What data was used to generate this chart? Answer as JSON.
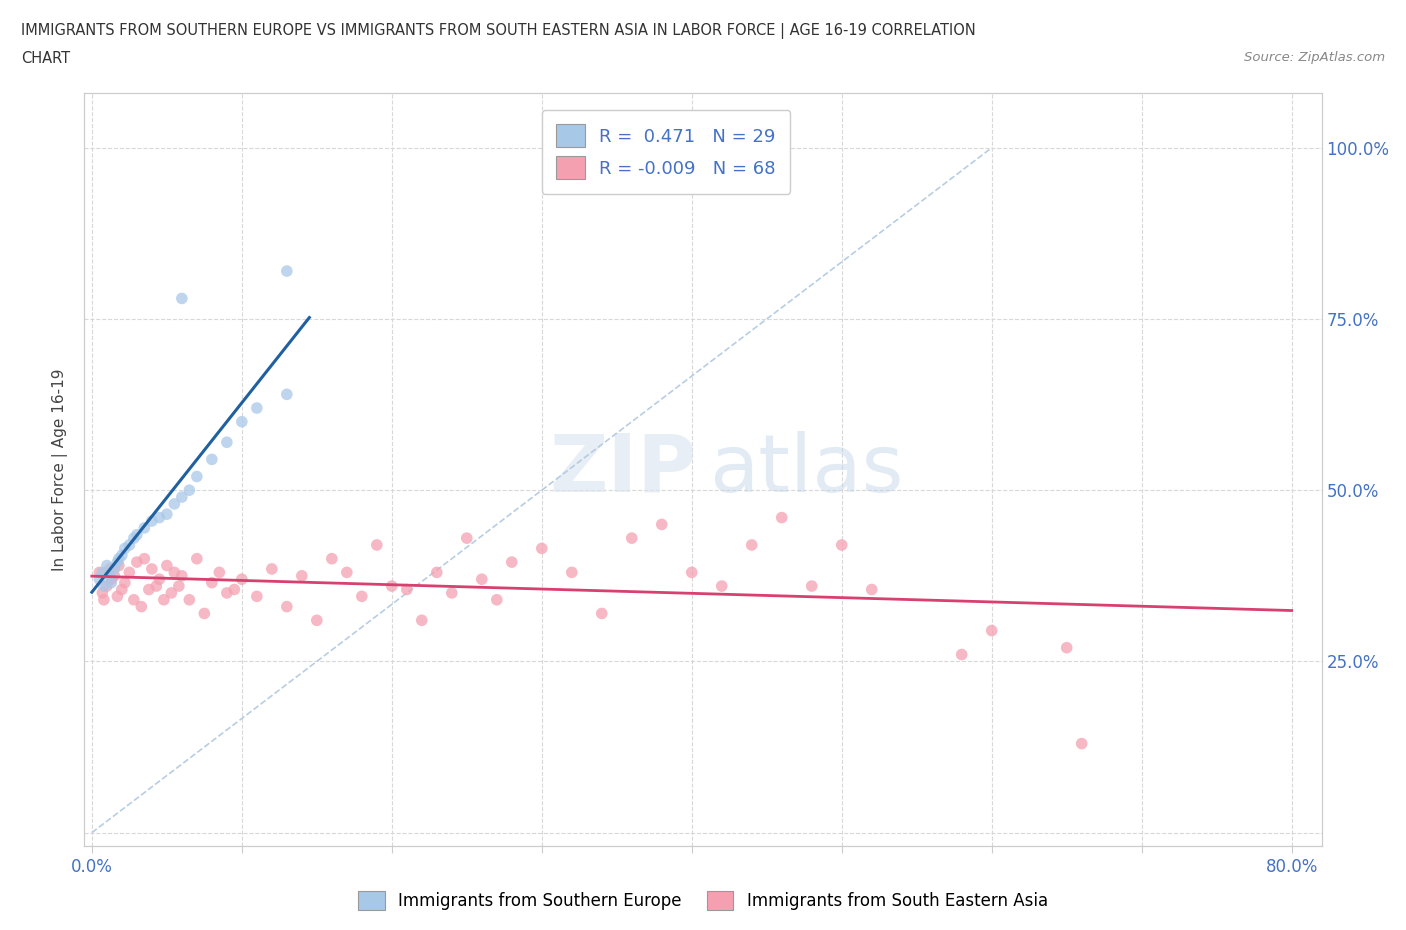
{
  "title_line1": "IMMIGRANTS FROM SOUTHERN EUROPE VS IMMIGRANTS FROM SOUTH EASTERN ASIA IN LABOR FORCE | AGE 16-19 CORRELATION",
  "title_line2": "CHART",
  "source_text": "Source: ZipAtlas.com",
  "ylabel": "In Labor Force | Age 16-19",
  "xlim": [
    -0.005,
    0.82
  ],
  "ylim": [
    -0.02,
    1.08
  ],
  "x_tick_positions": [
    0.0,
    0.1,
    0.2,
    0.3,
    0.4,
    0.5,
    0.6,
    0.7,
    0.8
  ],
  "x_tick_labels": [
    "0.0%",
    "",
    "",
    "",
    "",
    "",
    "",
    "",
    "80.0%"
  ],
  "y_tick_positions": [
    0.0,
    0.25,
    0.5,
    0.75,
    1.0
  ],
  "y_right_labels": [
    "",
    "25.0%",
    "50.0%",
    "75.0%",
    "100.0%"
  ],
  "blue_fill": "#a8c8e8",
  "pink_fill": "#f4a0b0",
  "blue_line_color": "#2060a0",
  "pink_line_color": "#d84070",
  "dash_line_color": "#b0c8e0",
  "blue_R": 0.471,
  "blue_N": 29,
  "pink_R": -0.009,
  "pink_N": 68,
  "grid_color": "#d8d8d8",
  "bg_color": "#ffffff",
  "tick_color": "#4472c4",
  "blue_scatter_x": [
    0.005,
    0.007,
    0.008,
    0.01,
    0.012,
    0.013,
    0.015,
    0.017,
    0.018,
    0.02,
    0.022,
    0.025,
    0.028,
    0.03,
    0.035,
    0.04,
    0.045,
    0.05,
    0.055,
    0.06,
    0.065,
    0.07,
    0.08,
    0.09,
    0.1,
    0.11,
    0.13,
    0.06,
    0.13
  ],
  "blue_scatter_y": [
    0.37,
    0.38,
    0.36,
    0.39,
    0.375,
    0.365,
    0.385,
    0.395,
    0.4,
    0.405,
    0.415,
    0.42,
    0.43,
    0.435,
    0.445,
    0.455,
    0.46,
    0.465,
    0.48,
    0.49,
    0.5,
    0.52,
    0.545,
    0.57,
    0.6,
    0.62,
    0.64,
    0.78,
    0.82
  ],
  "pink_scatter_x": [
    0.005,
    0.007,
    0.008,
    0.01,
    0.012,
    0.013,
    0.015,
    0.017,
    0.018,
    0.02,
    0.022,
    0.025,
    0.028,
    0.03,
    0.033,
    0.035,
    0.038,
    0.04,
    0.043,
    0.045,
    0.048,
    0.05,
    0.053,
    0.055,
    0.058,
    0.06,
    0.065,
    0.07,
    0.075,
    0.08,
    0.085,
    0.09,
    0.095,
    0.1,
    0.11,
    0.12,
    0.13,
    0.14,
    0.15,
    0.16,
    0.17,
    0.18,
    0.19,
    0.2,
    0.21,
    0.22,
    0.23,
    0.24,
    0.25,
    0.26,
    0.27,
    0.28,
    0.3,
    0.32,
    0.34,
    0.36,
    0.38,
    0.4,
    0.42,
    0.44,
    0.46,
    0.48,
    0.5,
    0.52,
    0.58,
    0.6,
    0.65,
    0.66
  ],
  "pink_scatter_y": [
    0.38,
    0.35,
    0.34,
    0.36,
    0.385,
    0.37,
    0.375,
    0.345,
    0.39,
    0.355,
    0.365,
    0.38,
    0.34,
    0.395,
    0.33,
    0.4,
    0.355,
    0.385,
    0.36,
    0.37,
    0.34,
    0.39,
    0.35,
    0.38,
    0.36,
    0.375,
    0.34,
    0.4,
    0.32,
    0.365,
    0.38,
    0.35,
    0.355,
    0.37,
    0.345,
    0.385,
    0.33,
    0.375,
    0.31,
    0.4,
    0.38,
    0.345,
    0.42,
    0.36,
    0.355,
    0.31,
    0.38,
    0.35,
    0.43,
    0.37,
    0.34,
    0.395,
    0.415,
    0.38,
    0.32,
    0.43,
    0.45,
    0.38,
    0.36,
    0.42,
    0.46,
    0.36,
    0.42,
    0.355,
    0.26,
    0.295,
    0.27,
    0.13
  ]
}
